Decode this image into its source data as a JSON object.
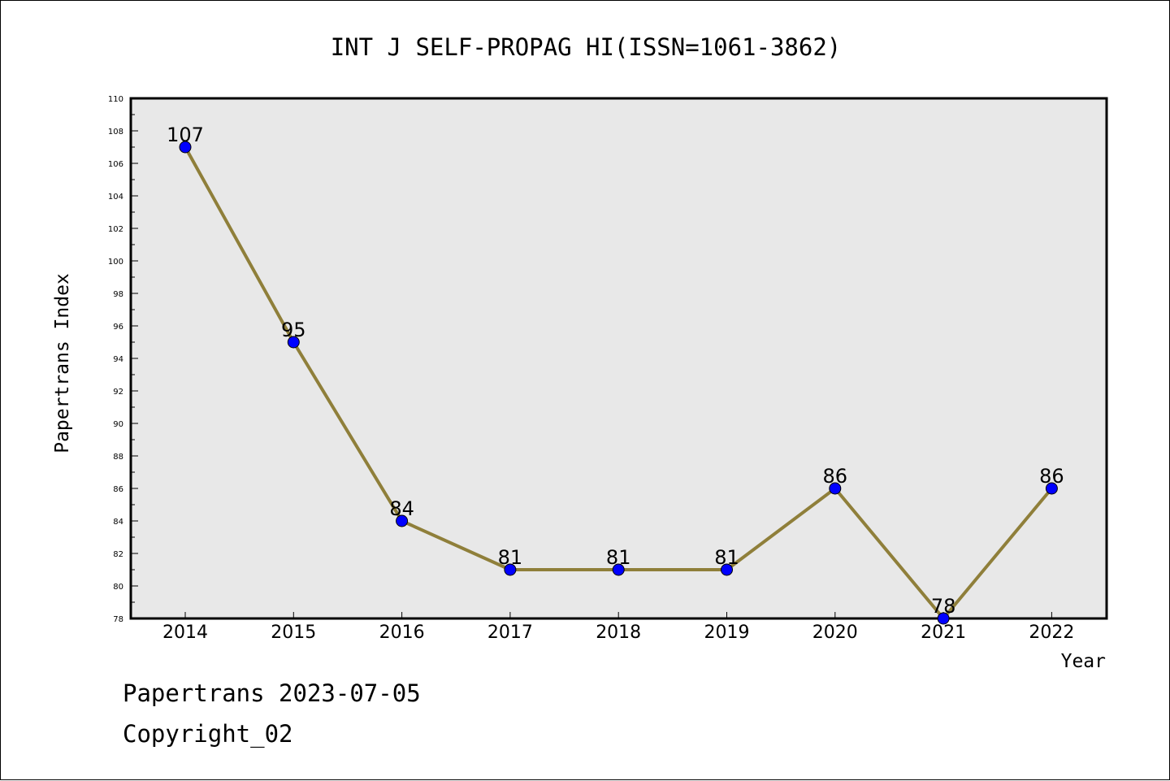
{
  "chart_data": {
    "type": "line",
    "title": "INT J SELF-PROPAG HI(ISSN=1061-3862)",
    "xlabel": "Year",
    "ylabel": "Papertrans Index",
    "categories": [
      "2014",
      "2015",
      "2016",
      "2017",
      "2018",
      "2019",
      "2020",
      "2021",
      "2022"
    ],
    "series": [
      {
        "values": [
          107,
          95,
          84,
          81,
          81,
          81,
          86,
          78,
          86
        ]
      }
    ],
    "ylim": [
      78,
      110
    ],
    "yticks": [
      78,
      80,
      82,
      84,
      86,
      88,
      90,
      92,
      94,
      96,
      98,
      100,
      102,
      104,
      106,
      108,
      110
    ],
    "grid": false,
    "legend": "none",
    "line_color": "#8f7f3a",
    "marker_color": "#0000ff",
    "plot_background": "#e8e8e8"
  },
  "footer": {
    "line1": "Papertrans 2023-07-05",
    "line2": "Copyright_02"
  }
}
